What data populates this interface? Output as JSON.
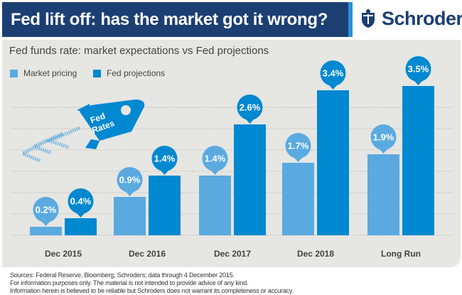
{
  "header": {
    "title": "Fed lift off: has the market got it wrong?"
  },
  "logo": {
    "text": "Schroders"
  },
  "colors": {
    "header_bg": "#1b3f73",
    "market": "#5aaae0",
    "fed": "#0088d1",
    "panel": "#e6e6e3"
  },
  "illustration": {
    "rocket_label_1": "Fed",
    "rocket_label_2": "Rates"
  },
  "chart_data": {
    "type": "bar",
    "title": "Fed funds rate: market expectations vs Fed projections",
    "categories": [
      "Dec 2015",
      "Dec 2016",
      "Dec 2017",
      "Dec 2018",
      "Long Run"
    ],
    "series": [
      {
        "name": "Market pricing",
        "values": [
          0.2,
          0.9,
          1.4,
          1.7,
          1.9
        ],
        "labels": [
          "0.2%",
          "0.9%",
          "1.4%",
          "1.7%",
          "1.9%"
        ],
        "color": "#5aaae0"
      },
      {
        "name": "Fed projections",
        "values": [
          0.4,
          1.4,
          2.6,
          3.4,
          3.5
        ],
        "labels": [
          "0.4%",
          "1.4%",
          "2.6%",
          "3.4%",
          "3.5%"
        ],
        "color": "#0088d1"
      }
    ],
    "ylim": [
      0,
      3.5
    ],
    "grid": true,
    "legend": "top-left",
    "data_labels": "bubbles above bars"
  },
  "footer": {
    "line1": "Sources: Federal Reserve, Bloomberg, Schroders; data through 4 December 2015.",
    "line2": "For information purposes only. The material is not intended to provide advice of any kind.",
    "line3": "Information herein is believed to be reliable but Schroders does not warrant its completeness or accuracy."
  }
}
